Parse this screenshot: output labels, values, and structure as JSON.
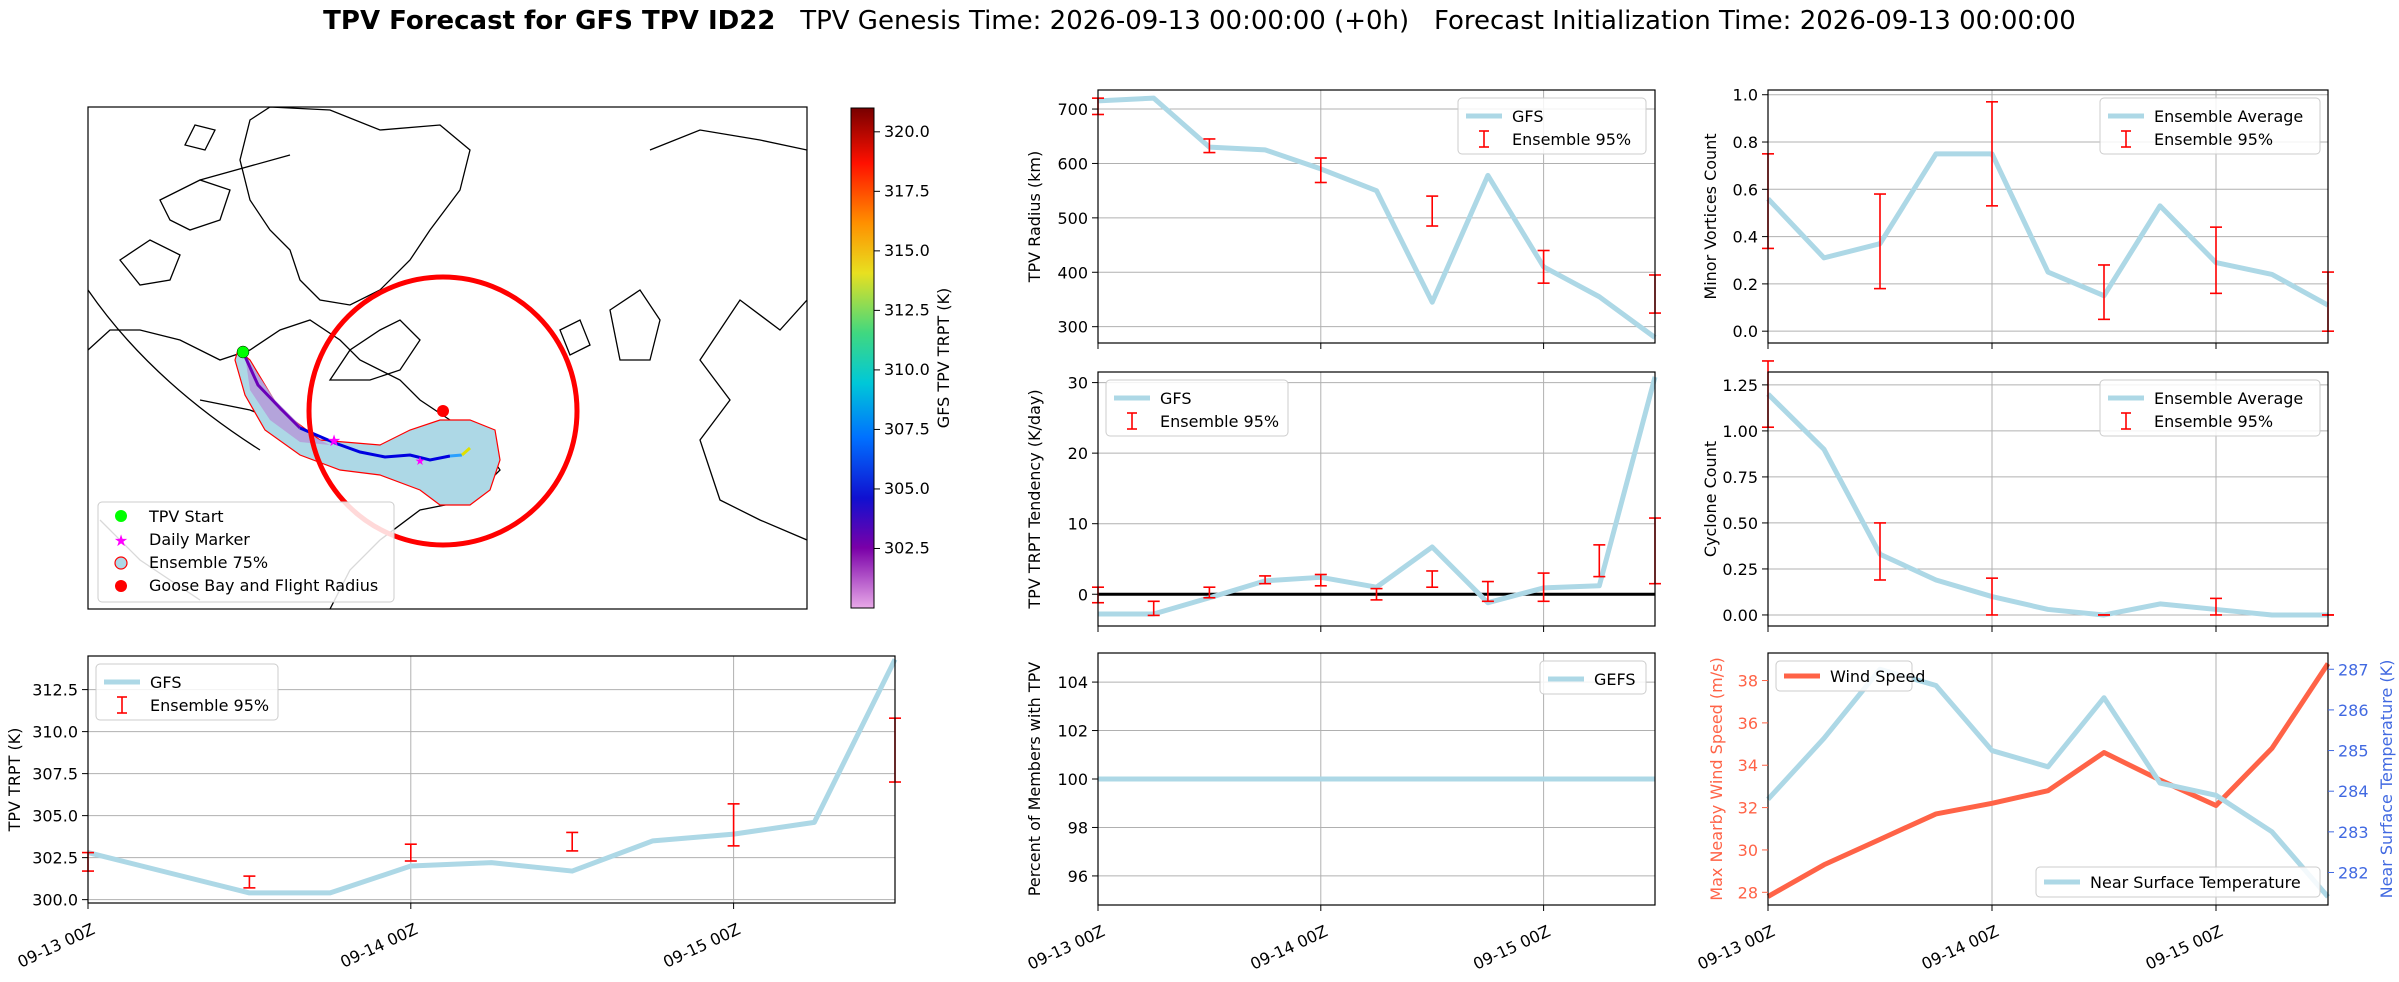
{
  "title": {
    "bold": "TPV Forecast for GFS TPV ID22",
    "genesis": "TPV Genesis Time: 2026-09-13 00:00:00 (+0h)",
    "init": "Forecast Initialization Time: 2026-09-13 00:00:00"
  },
  "map": {
    "legend": [
      "TPV Start",
      "Daily Marker",
      "Ensemble 75%",
      "Goose Bay and Flight Radius"
    ],
    "colorbar": {
      "label": "GFS TPV TRPT (K)",
      "ticks": [
        "302.5",
        "305.0",
        "307.5",
        "310.0",
        "312.5",
        "315.0",
        "317.5",
        "320.0"
      ],
      "range": [
        300.0,
        321.0
      ]
    }
  },
  "colors": {
    "gfs": "#add8e6",
    "ensemble": "#ff0000",
    "wind": "#ff6347",
    "temp_axis": "#4169e1",
    "zero_line": "#000000"
  },
  "chart_data": [
    {
      "id": "trpt",
      "type": "line",
      "x_ticks": [
        "09-13 00Z",
        "09-14 00Z",
        "09-15 00Z"
      ],
      "ylabel": "TPV TRPT (K)",
      "ylim": [
        299.8,
        314.5
      ],
      "y_ticks": [
        "300.0",
        "302.5",
        "305.0",
        "307.5",
        "310.0",
        "312.5"
      ],
      "legend": [
        "GFS",
        "Ensemble 95%"
      ],
      "series": [
        {
          "name": "GFS",
          "values": [
            302.8,
            301.6,
            300.4,
            300.4,
            302.0,
            302.2,
            301.7,
            303.5,
            303.9,
            304.6,
            314.3
          ]
        }
      ],
      "errorbars": [
        [
          0,
          301.7,
          302.8
        ],
        [
          2,
          300.7,
          301.4
        ],
        [
          4,
          302.3,
          303.3
        ],
        [
          6,
          302.9,
          304.0
        ],
        [
          8,
          303.2,
          305.7
        ],
        [
          10,
          307.0,
          310.8
        ]
      ]
    },
    {
      "id": "radius",
      "type": "line",
      "ylabel": "TPV Radius (km)",
      "ylim": [
        270,
        735
      ],
      "y_ticks": [
        "300",
        "400",
        "500",
        "600",
        "700"
      ],
      "legend": [
        "GFS",
        "Ensemble 95%"
      ],
      "series": [
        {
          "name": "GFS",
          "values": [
            715,
            720,
            630,
            625,
            590,
            550,
            345,
            578,
            410,
            355,
            280
          ]
        }
      ],
      "errorbars": [
        [
          0,
          690,
          720
        ],
        [
          2,
          620,
          645
        ],
        [
          4,
          565,
          610
        ],
        [
          6,
          485,
          540
        ],
        [
          8,
          380,
          440
        ],
        [
          10,
          325,
          395
        ]
      ]
    },
    {
      "id": "tendency",
      "type": "line",
      "ylabel": "TPV TRPT Tendency (K/day)",
      "ylim": [
        -4.5,
        31.5
      ],
      "y_ticks": [
        "0",
        "10",
        "20",
        "30"
      ],
      "legend": [
        "GFS",
        "Ensemble 95%"
      ],
      "series": [
        {
          "name": "GFS",
          "values": [
            -2.8,
            -2.8,
            -0.5,
            1.9,
            2.4,
            1.0,
            6.7,
            -1.2,
            0.9,
            1.2,
            30.8
          ]
        }
      ],
      "errorbars": [
        [
          0,
          -1.2,
          1.0
        ],
        [
          1,
          -3.0,
          -1.0
        ],
        [
          2,
          -0.5,
          1.0
        ],
        [
          3,
          1.5,
          2.6
        ],
        [
          4,
          1.2,
          2.8
        ],
        [
          5,
          -0.8,
          0.8
        ],
        [
          6,
          1.0,
          3.3
        ],
        [
          7,
          -1.0,
          1.8
        ],
        [
          8,
          -1.0,
          3.0
        ],
        [
          9,
          2.5,
          7.0
        ],
        [
          10,
          1.5,
          10.8
        ]
      ]
    },
    {
      "id": "percent",
      "type": "line",
      "xlabel_ticks": [
        "09-13 00Z",
        "09-14 00Z",
        "09-15 00Z"
      ],
      "ylabel": "Percent of Members with TPV",
      "ylim": [
        94.8,
        105.2
      ],
      "y_ticks": [
        "96",
        "98",
        "100",
        "102",
        "104"
      ],
      "legend": [
        "GEFS"
      ],
      "series": [
        {
          "name": "GEFS",
          "values": [
            100,
            100,
            100,
            100,
            100,
            100,
            100,
            100,
            100,
            100,
            100
          ]
        }
      ]
    },
    {
      "id": "minor",
      "type": "line",
      "ylabel": "Minor Vortices Count",
      "ylim": [
        -0.05,
        1.02
      ],
      "y_ticks": [
        "0.0",
        "0.2",
        "0.4",
        "0.6",
        "0.8",
        "1.0"
      ],
      "legend": [
        "Ensemble Average",
        "Ensemble 95%"
      ],
      "series": [
        {
          "name": "Ensemble Average",
          "values": [
            0.56,
            0.31,
            0.37,
            0.75,
            0.75,
            0.25,
            0.15,
            0.53,
            0.29,
            0.24,
            0.11
          ]
        }
      ],
      "errorbars": [
        [
          0,
          0.35,
          0.75
        ],
        [
          2,
          0.18,
          0.58
        ],
        [
          4,
          0.53,
          0.97
        ],
        [
          6,
          0.05,
          0.28
        ],
        [
          8,
          0.16,
          0.44
        ],
        [
          10,
          0.0,
          0.25
        ]
      ]
    },
    {
      "id": "cyclone",
      "type": "line",
      "ylabel": "Cyclone Count",
      "ylim": [
        -0.06,
        1.32
      ],
      "y_ticks": [
        "0.00",
        "0.25",
        "0.50",
        "0.75",
        "1.00",
        "1.25"
      ],
      "legend": [
        "Ensemble Average",
        "Ensemble 95%"
      ],
      "series": [
        {
          "name": "Ensemble Average",
          "values": [
            1.2,
            0.9,
            0.33,
            0.19,
            0.1,
            0.03,
            0.0,
            0.06,
            0.03,
            0.0,
            0.0
          ]
        }
      ],
      "errorbars": [
        [
          0,
          1.02,
          1.38
        ],
        [
          2,
          0.19,
          0.5
        ],
        [
          4,
          0.0,
          0.2
        ],
        [
          6,
          0.0,
          0.0
        ],
        [
          8,
          0.0,
          0.09
        ],
        [
          10,
          0.0,
          0.0
        ]
      ]
    },
    {
      "id": "wind",
      "type": "line",
      "x_ticks": [
        "09-13 00Z",
        "09-14 00Z",
        "09-15 00Z"
      ],
      "ylabel": "Max Nearby Wind Speed (m/s)",
      "ylabel_right": "Near Surface Temperature (K)",
      "ylim": [
        27.4,
        39.3
      ],
      "y_ticks": [
        "28",
        "30",
        "32",
        "34",
        "36",
        "38"
      ],
      "ylim_right": [
        281.2,
        287.4
      ],
      "y_ticks_right": [
        "282",
        "283",
        "284",
        "285",
        "286",
        "287"
      ],
      "legend": [
        "Wind Speed",
        "Near Surface Temperature"
      ],
      "series": [
        {
          "name": "Wind Speed",
          "values": [
            27.8,
            29.3,
            30.5,
            31.7,
            32.2,
            32.8,
            34.6,
            33.3,
            32.1,
            34.8,
            38.8
          ]
        },
        {
          "name": "Near Surface Temperature",
          "values": [
            283.8,
            285.3,
            287.0,
            286.6,
            285.0,
            284.6,
            286.3,
            284.2,
            283.9,
            283.0,
            281.4
          ]
        }
      ]
    }
  ]
}
